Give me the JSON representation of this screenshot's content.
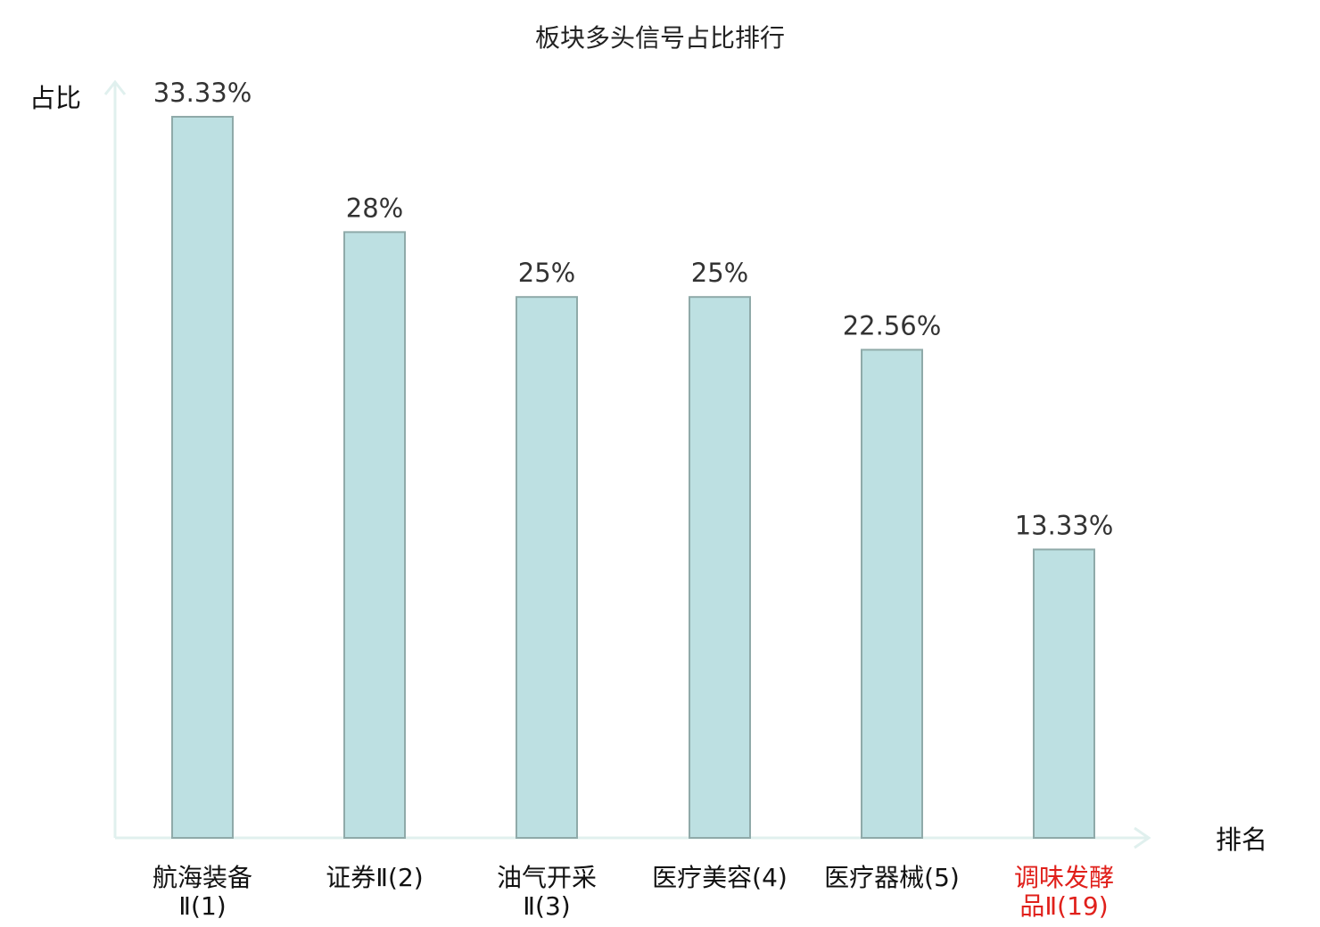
{
  "colors": {
    "bar_fill": "#bde0e2",
    "bar_stroke": "#8faaa9",
    "axis": "#e0f0ee",
    "text": "#333333",
    "highlight": "#e0201b"
  },
  "chart_data": {
    "type": "bar",
    "title": "板块多头信号占比排行",
    "ylabel": "占比",
    "xlabel": "排名",
    "categories": [
      {
        "lines": [
          "航海装备",
          "Ⅱ(1)"
        ],
        "highlight": false
      },
      {
        "lines": [
          "证券Ⅱ(2)"
        ],
        "highlight": false
      },
      {
        "lines": [
          "油气开采",
          "Ⅱ(3)"
        ],
        "highlight": false
      },
      {
        "lines": [
          "医疗美容(4)"
        ],
        "highlight": false
      },
      {
        "lines": [
          "医疗器械(5)"
        ],
        "highlight": false
      },
      {
        "lines": [
          "调味发酵",
          "品Ⅱ(19)"
        ],
        "highlight": true
      }
    ],
    "values": [
      33.33,
      28,
      25,
      25,
      22.56,
      13.33
    ],
    "value_labels": [
      "33.33%",
      "28%",
      "25%",
      "25%",
      "22.56%",
      "13.33%"
    ],
    "ylim": [
      0,
      33.33
    ],
    "grid": false,
    "legend": "none"
  }
}
